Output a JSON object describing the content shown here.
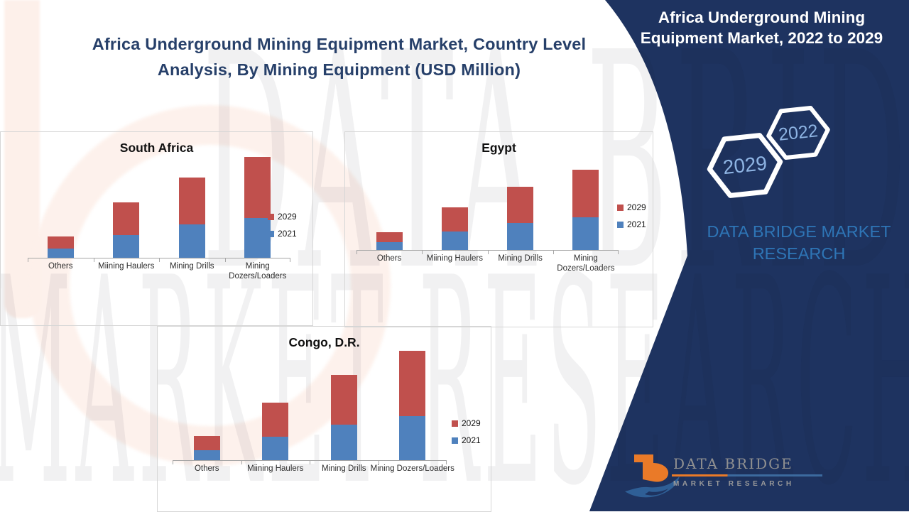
{
  "header": {
    "title": "Africa Underground Mining Equipment Market, Country Level Analysis, By Mining Equipment (USD Million)"
  },
  "sidebar": {
    "title": "Africa Underground Mining Equipment Market, 2022 to 2029",
    "hexagons": [
      {
        "year": "2029"
      },
      {
        "year": "2022"
      }
    ],
    "brand": "DATA BRIDGE MARKET RESEARCH",
    "background_color": "#1e3360",
    "brand_text_color": "#2e75b6",
    "hex_year_color": "#8eb4e3"
  },
  "watermark": {
    "line1": "DATA BRIDGE",
    "line2": "MARKET RESEARCH"
  },
  "legend": [
    {
      "label": "2029",
      "color": "#c0504d"
    },
    {
      "label": "2021",
      "color": "#4f81bd"
    }
  ],
  "chart_data": [
    {
      "type": "bar",
      "stacked": true,
      "title": "South Africa",
      "categories": [
        "Others",
        "Miining Haulers",
        "Mining Drills",
        "Mining Dozers/Loaders"
      ],
      "series": [
        {
          "name": "2021",
          "color": "#4f81bd",
          "values": [
            13,
            32,
            47,
            56
          ]
        },
        {
          "name": "2029",
          "color": "#c0504d",
          "values": [
            17,
            46,
            66,
            86
          ]
        }
      ],
      "xlabel": "",
      "ylabel": "",
      "value_axis_visible": false,
      "legend_position": "right",
      "note": "Value axis unlabeled; values estimated from bar heights (relative units, USD Million)"
    },
    {
      "type": "bar",
      "stacked": true,
      "title": "Egypt",
      "categories": [
        "Others",
        "Miining Haulers",
        "Mining Drills",
        "Mining Dozers/Loaders"
      ],
      "series": [
        {
          "name": "2021",
          "color": "#4f81bd",
          "values": [
            11,
            26,
            38,
            46
          ]
        },
        {
          "name": "2029",
          "color": "#c0504d",
          "values": [
            14,
            34,
            51,
            67
          ]
        }
      ],
      "xlabel": "",
      "ylabel": "",
      "value_axis_visible": false,
      "legend_position": "right",
      "note": "Value axis unlabeled; values estimated from bar heights (relative units, USD Million)"
    },
    {
      "type": "bar",
      "stacked": true,
      "title": "Congo, D.R.",
      "categories": [
        "Others",
        "Miining Haulers",
        "Mining Drills",
        "Mining Dozers/Loaders"
      ],
      "series": [
        {
          "name": "2021",
          "color": "#4f81bd",
          "values": [
            14,
            33,
            50,
            62
          ]
        },
        {
          "name": "2029",
          "color": "#c0504d",
          "values": [
            20,
            48,
            70,
            92
          ]
        }
      ],
      "xlabel": "",
      "ylabel": "",
      "value_axis_visible": false,
      "legend_position": "right",
      "note": "Value axis unlabeled; values estimated from bar heights (relative units, USD Million)"
    }
  ],
  "footer_logo": {
    "name": "DATA BRIDGE",
    "tagline": "MARKET RESEARCH",
    "orange": "#ea7a28",
    "blue": "#2f5f96"
  }
}
